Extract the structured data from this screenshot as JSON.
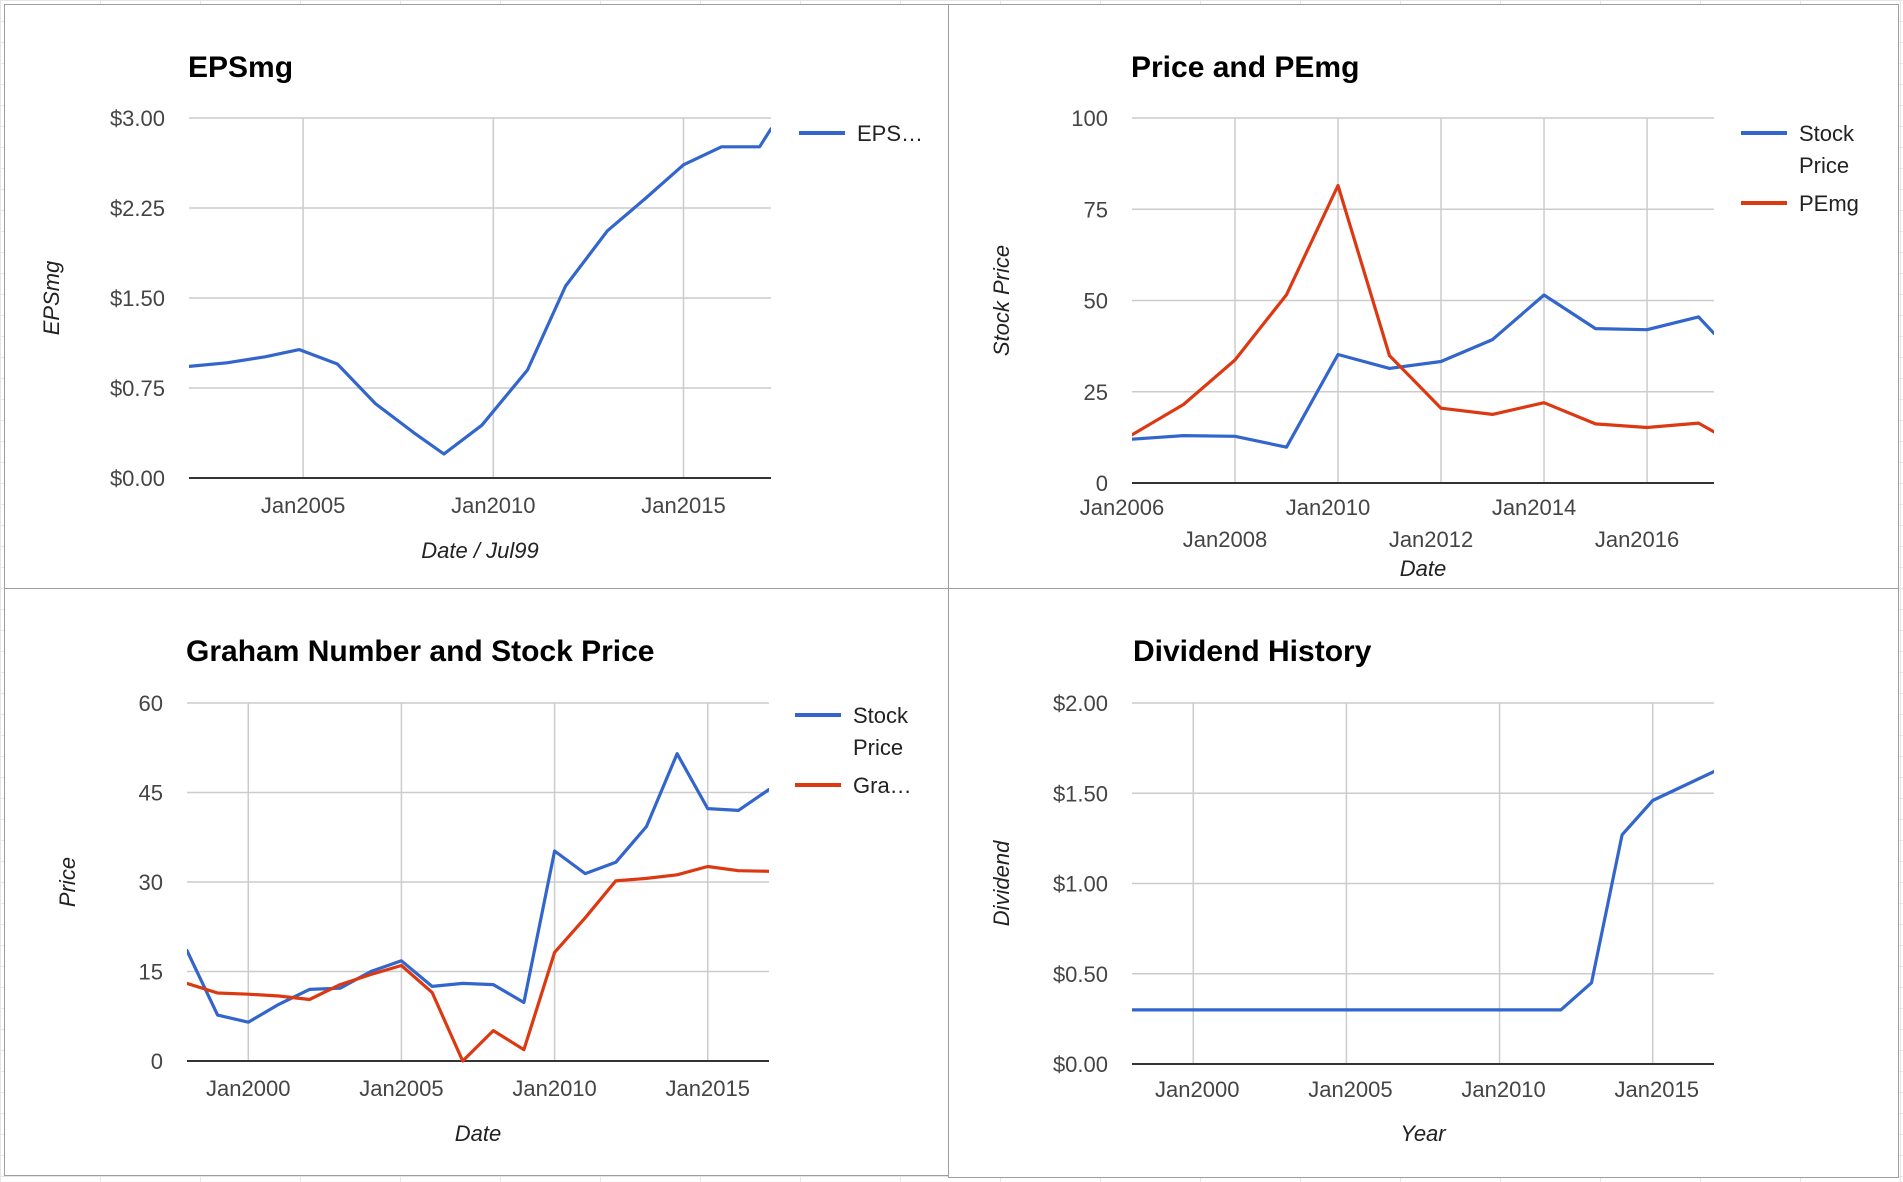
{
  "colors": {
    "blue": "#3366cc",
    "red": "#dc3912"
  },
  "chart_data": [
    {
      "id": "eps",
      "type": "line",
      "title": "EPSmg",
      "xlabel": "Date / Jul99",
      "ylabel": "EPSmg",
      "ylim": [
        0,
        3
      ],
      "xlim": [
        2002.0,
        2017.3
      ],
      "y_ticks": [
        {
          "value": 0,
          "label": "$0.00"
        },
        {
          "value": 0.75,
          "label": "$0.75"
        },
        {
          "value": 1.5,
          "label": "$1.50"
        },
        {
          "value": 2.25,
          "label": "$2.25"
        },
        {
          "value": 3,
          "label": "$3.00"
        }
      ],
      "x_ticks": [
        {
          "value": 2005,
          "label": "Jan2005"
        },
        {
          "value": 2010,
          "label": "Jan2010"
        },
        {
          "value": 2015,
          "label": "Jan2015"
        }
      ],
      "grid": true,
      "legend_position": "right",
      "series": [
        {
          "name": "EPS…",
          "color": "#3366cc",
          "points": [
            [
              2002.0,
              0.93
            ],
            [
              2003.0,
              0.96
            ],
            [
              2004.0,
              1.01
            ],
            [
              2004.9,
              1.07
            ],
            [
              2005.9,
              0.95
            ],
            [
              2006.9,
              0.62
            ],
            [
              2007.9,
              0.38
            ],
            [
              2008.7,
              0.2
            ],
            [
              2009.7,
              0.44
            ],
            [
              2010.9,
              0.9
            ],
            [
              2011.9,
              1.6
            ],
            [
              2013.0,
              2.06
            ],
            [
              2014.0,
              2.33
            ],
            [
              2015.0,
              2.61
            ],
            [
              2016.0,
              2.76
            ],
            [
              2017.0,
              2.76
            ],
            [
              2017.3,
              2.91
            ]
          ]
        }
      ]
    },
    {
      "id": "price-pe",
      "type": "line",
      "title": "Price and PEmg",
      "xlabel": "Date",
      "ylabel": "Stock Price",
      "ylim": [
        0,
        100
      ],
      "xlim": [
        2006.0,
        2017.3
      ],
      "y_ticks": [
        {
          "value": 0,
          "label": "0"
        },
        {
          "value": 25,
          "label": "25"
        },
        {
          "value": 50,
          "label": "50"
        },
        {
          "value": 75,
          "label": "75"
        },
        {
          "value": 100,
          "label": "100"
        }
      ],
      "x_ticks": [
        {
          "value": 2006,
          "label": "Jan2006",
          "row": 1
        },
        {
          "value": 2008,
          "label": "Jan2008",
          "row": 2
        },
        {
          "value": 2010,
          "label": "Jan2010",
          "row": 1
        },
        {
          "value": 2012,
          "label": "Jan2012",
          "row": 2
        },
        {
          "value": 2014,
          "label": "Jan2014",
          "row": 1
        },
        {
          "value": 2016,
          "label": "Jan2016",
          "row": 2
        }
      ],
      "grid": true,
      "legend_position": "right",
      "series": [
        {
          "name": "Stock Price",
          "color": "#3366cc",
          "points": [
            [
              2006.0,
              12
            ],
            [
              2007.0,
              13
            ],
            [
              2008.0,
              12.8
            ],
            [
              2009.0,
              9.8
            ],
            [
              2010.0,
              35.2
            ],
            [
              2011.0,
              31.4
            ],
            [
              2012.0,
              33.3
            ],
            [
              2013.0,
              39.3
            ],
            [
              2014.0,
              51.5
            ],
            [
              2015.0,
              42.3
            ],
            [
              2016.0,
              42.0
            ],
            [
              2017.0,
              45.5
            ],
            [
              2017.3,
              41.0
            ]
          ]
        },
        {
          "name": "PEmg",
          "color": "#dc3912",
          "points": [
            [
              2006.0,
              13.2
            ],
            [
              2007.0,
              21.5
            ],
            [
              2008.0,
              33.7
            ],
            [
              2009.0,
              51.6
            ],
            [
              2010.0,
              81.5
            ],
            [
              2011.0,
              34.9
            ],
            [
              2012.0,
              20.5
            ],
            [
              2013.0,
              18.8
            ],
            [
              2014.0,
              22.0
            ],
            [
              2015.0,
              16.2
            ],
            [
              2016.0,
              15.2
            ],
            [
              2017.0,
              16.4
            ],
            [
              2017.3,
              14.0
            ]
          ]
        }
      ]
    },
    {
      "id": "graham",
      "type": "line",
      "title": "Graham Number and Stock Price",
      "xlabel": "Date",
      "ylabel": "Price",
      "ylim": [
        0,
        60
      ],
      "xlim": [
        1998.0,
        2017.0
      ],
      "y_ticks": [
        {
          "value": 0,
          "label": "0"
        },
        {
          "value": 15,
          "label": "15"
        },
        {
          "value": 30,
          "label": "30"
        },
        {
          "value": 45,
          "label": "45"
        },
        {
          "value": 60,
          "label": "60"
        }
      ],
      "x_ticks": [
        {
          "value": 2000,
          "label": "Jan2000"
        },
        {
          "value": 2005,
          "label": "Jan2005"
        },
        {
          "value": 2010,
          "label": "Jan2010"
        },
        {
          "value": 2015,
          "label": "Jan2015"
        }
      ],
      "grid": true,
      "legend_position": "right",
      "series": [
        {
          "name": "Stock Price",
          "color": "#3366cc",
          "points": [
            [
              1998.0,
              18.5
            ],
            [
              1999.0,
              7.7
            ],
            [
              2000.0,
              6.5
            ],
            [
              2001.0,
              9.5
            ],
            [
              2002.0,
              12.0
            ],
            [
              2003.0,
              12.2
            ],
            [
              2004.0,
              15.0
            ],
            [
              2005.0,
              16.8
            ],
            [
              2006.0,
              12.5
            ],
            [
              2007.0,
              13.0
            ],
            [
              2008.0,
              12.8
            ],
            [
              2009.0,
              9.8
            ],
            [
              2010.0,
              35.2
            ],
            [
              2011.0,
              31.4
            ],
            [
              2012.0,
              33.3
            ],
            [
              2013.0,
              39.3
            ],
            [
              2014.0,
              51.5
            ],
            [
              2015.0,
              42.3
            ],
            [
              2016.0,
              42.0
            ],
            [
              2017.0,
              45.5
            ]
          ]
        },
        {
          "name": "Gra…",
          "color": "#dc3912",
          "points": [
            [
              1998.0,
              13.0
            ],
            [
              1999.0,
              11.4
            ],
            [
              2000.0,
              11.2
            ],
            [
              2001.0,
              10.9
            ],
            [
              2002.0,
              10.3
            ],
            [
              2003.0,
              12.8
            ],
            [
              2004.0,
              14.5
            ],
            [
              2005.0,
              16.0
            ],
            [
              2006.0,
              11.5
            ],
            [
              2007.0,
              0.0
            ],
            [
              2008.0,
              5.1
            ],
            [
              2009.0,
              1.9
            ],
            [
              2010.0,
              18.2
            ],
            [
              2011.0,
              24.0
            ],
            [
              2012.0,
              30.2
            ],
            [
              2013.0,
              30.6
            ],
            [
              2014.0,
              31.2
            ],
            [
              2015.0,
              32.6
            ],
            [
              2016.0,
              31.9
            ],
            [
              2017.0,
              31.8
            ]
          ]
        }
      ]
    },
    {
      "id": "dividend",
      "type": "line",
      "title": "Dividend History",
      "xlabel": "Year",
      "ylabel": "Dividend",
      "ylim": [
        0,
        2
      ],
      "xlim": [
        1998.0,
        2017.0
      ],
      "y_ticks": [
        {
          "value": 0,
          "label": "$0.00"
        },
        {
          "value": 0.5,
          "label": "$0.50"
        },
        {
          "value": 1,
          "label": "$1.00"
        },
        {
          "value": 1.5,
          "label": "$1.50"
        },
        {
          "value": 2,
          "label": "$2.00"
        }
      ],
      "x_ticks": [
        {
          "value": 2000,
          "label": "Jan2000"
        },
        {
          "value": 2005,
          "label": "Jan2005"
        },
        {
          "value": 2010,
          "label": "Jan2010"
        },
        {
          "value": 2015,
          "label": "Jan2015"
        }
      ],
      "grid": true,
      "legend_position": "none",
      "series": [
        {
          "name": "",
          "color": "#3366cc",
          "points": [
            [
              1998.0,
              0.3
            ],
            [
              2012.0,
              0.3
            ],
            [
              2013.0,
              0.45
            ],
            [
              2014.0,
              1.27
            ],
            [
              2015.0,
              1.46
            ],
            [
              2016.0,
              1.54
            ],
            [
              2017.0,
              1.62
            ]
          ]
        }
      ]
    }
  ]
}
